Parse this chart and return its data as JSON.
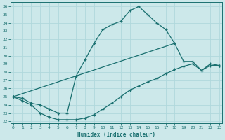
{
  "xlabel": "Humidex (Indice chaleur)",
  "bg_color": "#cce8ea",
  "grid_color": "#b0d8dc",
  "line_color": "#1a7070",
  "xlim": [
    -0.3,
    23.3
  ],
  "ylim": [
    21.8,
    36.5
  ],
  "xticks": [
    0,
    1,
    2,
    3,
    4,
    5,
    6,
    7,
    8,
    9,
    10,
    11,
    12,
    13,
    14,
    15,
    16,
    17,
    18,
    19,
    20,
    21,
    22,
    23
  ],
  "yticks": [
    22,
    23,
    24,
    25,
    26,
    27,
    28,
    29,
    30,
    31,
    32,
    33,
    34,
    35,
    36
  ],
  "line1_x": [
    0,
    1,
    2,
    3,
    4,
    5,
    6,
    7,
    8,
    9,
    10,
    11,
    12,
    13,
    14,
    15,
    16,
    17,
    18
  ],
  "line1_y": [
    25.0,
    24.8,
    24.2,
    24.0,
    23.5,
    23.0,
    23.0,
    27.5,
    29.5,
    31.5,
    33.2,
    33.8,
    34.2,
    35.5,
    36.0,
    35.0,
    34.0,
    33.2,
    31.5
  ],
  "line2_x": [
    0,
    18,
    19,
    20,
    21,
    22,
    23
  ],
  "line2_y": [
    25.0,
    31.5,
    29.3,
    29.3,
    28.2,
    29.0,
    28.8
  ],
  "line3_x": [
    0,
    1,
    2,
    3,
    4,
    5,
    6,
    7,
    8,
    9,
    10,
    11,
    12,
    13,
    14,
    15,
    16,
    17,
    18,
    19,
    20,
    21,
    22,
    23
  ],
  "line3_y": [
    25.0,
    24.5,
    24.0,
    23.0,
    22.5,
    22.2,
    22.2,
    22.2,
    22.4,
    22.8,
    23.5,
    24.2,
    25.0,
    25.8,
    26.3,
    26.8,
    27.2,
    27.8,
    28.3,
    28.7,
    29.0,
    28.2,
    28.8,
    28.8
  ]
}
